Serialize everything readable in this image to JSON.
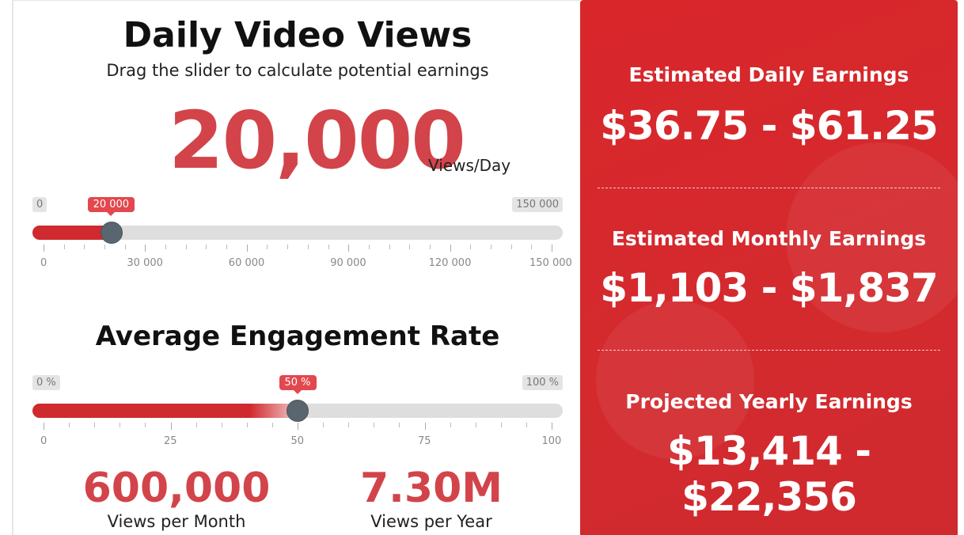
{
  "views_section": {
    "title": "Daily Video Views",
    "subtitle": "Drag the slider to calculate potential earnings",
    "value_display": "20,000",
    "unit": "Views/Day",
    "slider": {
      "min_label": "0",
      "max_label": "150 000",
      "bubble": "20 000",
      "min": 0,
      "max": 150000,
      "value": 20000,
      "tick_labels": [
        "0",
        "30 000",
        "60 000",
        "90 000",
        "120 000",
        "150 000"
      ]
    }
  },
  "engagement_section": {
    "title": "Average Engagement Rate",
    "slider": {
      "min_label": "0 %",
      "max_label": "100 %",
      "bubble": "50 %",
      "min": 0,
      "max": 100,
      "value": 50,
      "tick_labels": [
        "0",
        "25",
        "50",
        "75",
        "100"
      ]
    }
  },
  "stats": {
    "monthly_value": "600,000",
    "monthly_label": "Views per Month",
    "yearly_value": "7.30M",
    "yearly_label": "Views per Year"
  },
  "earnings": {
    "daily_title": "Estimated Daily Earnings",
    "daily_value": "$36.75 - $61.25",
    "monthly_title": "Estimated Monthly Earnings",
    "monthly_value": "$1,103 - $1,837",
    "yearly_title": "Projected Yearly Earnings",
    "yearly_value": "$13,414 - $22,356"
  },
  "colors": {
    "accent": "#d2444a",
    "panel_red": "#d9262b",
    "handle": "#5a666f",
    "track": "#dedede"
  }
}
